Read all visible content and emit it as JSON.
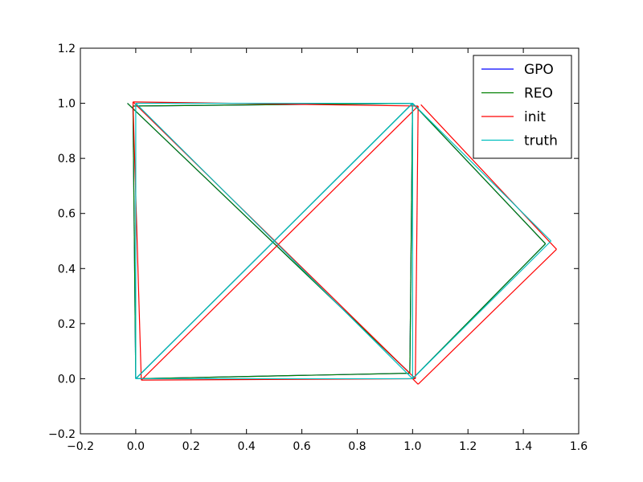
{
  "chart_data": {
    "type": "line",
    "title": "",
    "xlabel": "",
    "ylabel": "",
    "xlim": [
      -0.2,
      1.6
    ],
    "ylim": [
      -0.2,
      1.2
    ],
    "xticks": [
      -0.2,
      0.0,
      0.2,
      0.4,
      0.6,
      0.8,
      1.0,
      1.2,
      1.4,
      1.6
    ],
    "yticks": [
      -0.2,
      0.0,
      0.2,
      0.4,
      0.6,
      0.8,
      1.0,
      1.2
    ],
    "xtick_labels": [
      "−0.2",
      "0.0",
      "0.2",
      "0.4",
      "0.6",
      "0.8",
      "1.0",
      "1.2",
      "1.4",
      "1.6"
    ],
    "ytick_labels": [
      "−0.2",
      "0.0",
      "0.2",
      "0.4",
      "0.6",
      "0.8",
      "1.0",
      "1.2"
    ],
    "grid": false,
    "legend": {
      "position": "top-right",
      "entries": [
        "GPO",
        "REO",
        "init",
        "truth"
      ]
    },
    "series": [
      {
        "name": "GPO",
        "color": "#0000ff",
        "segments": [
          [
            [
              0.0,
              0.0
            ],
            [
              0.99,
              0.02
            ]
          ],
          [
            [
              0.99,
              0.02
            ],
            [
              1.0,
              1.0
            ]
          ],
          [
            [
              1.0,
              1.0
            ],
            [
              -0.01,
              0.99
            ]
          ],
          [
            [
              -0.01,
              0.99
            ],
            [
              0.0,
              0.0
            ]
          ],
          [
            [
              0.0,
              0.0
            ],
            [
              1.0,
              1.0
            ]
          ],
          [
            [
              -0.03,
              1.0
            ],
            [
              0.99,
              0.02
            ]
          ],
          [
            [
              1.0,
              1.0
            ],
            [
              1.48,
              0.49
            ]
          ],
          [
            [
              1.48,
              0.49
            ],
            [
              1.0,
              0.0
            ]
          ]
        ]
      },
      {
        "name": "REO",
        "color": "#008000",
        "segments": [
          [
            [
              0.0,
              0.0
            ],
            [
              0.99,
              0.02
            ]
          ],
          [
            [
              0.99,
              0.02
            ],
            [
              1.0,
              1.0
            ]
          ],
          [
            [
              1.0,
              1.0
            ],
            [
              -0.01,
              0.99
            ]
          ],
          [
            [
              -0.01,
              0.99
            ],
            [
              0.0,
              0.0
            ]
          ],
          [
            [
              0.0,
              0.0
            ],
            [
              1.0,
              1.0
            ]
          ],
          [
            [
              -0.03,
              1.0
            ],
            [
              0.99,
              0.02
            ]
          ],
          [
            [
              1.0,
              1.0
            ],
            [
              1.48,
              0.49
            ]
          ],
          [
            [
              1.48,
              0.49
            ],
            [
              1.0,
              0.0
            ]
          ]
        ]
      },
      {
        "name": "init",
        "color": "#ff0000",
        "segments": [
          [
            [
              0.02,
              -0.005
            ],
            [
              1.01,
              0.0
            ]
          ],
          [
            [
              1.01,
              0.0
            ],
            [
              1.02,
              0.99
            ]
          ],
          [
            [
              1.02,
              0.99
            ],
            [
              -0.01,
              1.005
            ]
          ],
          [
            [
              -0.01,
              1.005
            ],
            [
              0.02,
              -0.005
            ]
          ],
          [
            [
              0.02,
              -0.005
            ],
            [
              1.02,
              0.99
            ]
          ],
          [
            [
              -0.01,
              1.005
            ],
            [
              1.01,
              0.0
            ]
          ],
          [
            [
              1.03,
              0.995
            ],
            [
              1.52,
              0.47
            ]
          ],
          [
            [
              1.52,
              0.47
            ],
            [
              1.02,
              -0.02
            ]
          ],
          [
            [
              1.02,
              -0.02
            ],
            [
              1.0,
              0.0
            ]
          ]
        ]
      },
      {
        "name": "truth",
        "color": "#00bfbf",
        "segments": [
          [
            [
              0.0,
              0.0
            ],
            [
              1.0,
              0.0
            ]
          ],
          [
            [
              1.0,
              0.0
            ],
            [
              1.0,
              1.0
            ]
          ],
          [
            [
              1.0,
              1.0
            ],
            [
              0.0,
              1.0
            ]
          ],
          [
            [
              0.0,
              1.0
            ],
            [
              0.0,
              0.0
            ]
          ],
          [
            [
              0.0,
              0.0
            ],
            [
              1.0,
              1.0
            ]
          ],
          [
            [
              0.0,
              1.0
            ],
            [
              1.0,
              0.0
            ]
          ],
          [
            [
              1.0,
              1.0
            ],
            [
              1.5,
              0.5
            ]
          ],
          [
            [
              1.5,
              0.5
            ],
            [
              1.0,
              0.0
            ]
          ]
        ]
      }
    ]
  }
}
